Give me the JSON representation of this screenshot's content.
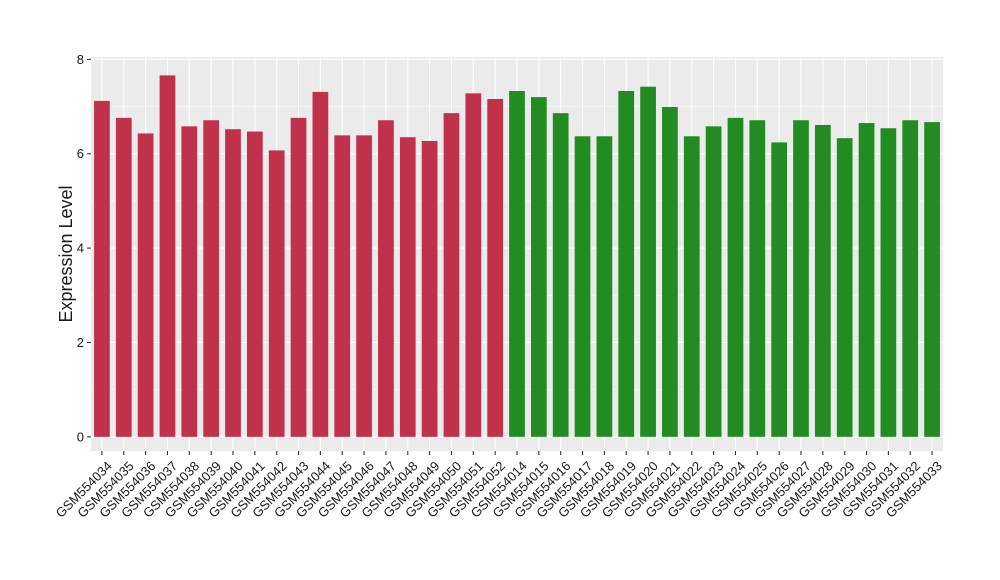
{
  "chart_data": {
    "type": "bar",
    "title": "",
    "xlabel": "",
    "ylabel": "Expression Level",
    "ylim": [
      -0.3,
      8.05
    ],
    "yticks": [
      0,
      2,
      4,
      6,
      8
    ],
    "grid": true,
    "colors": {
      "red": "#c0314b",
      "green": "#228b22",
      "panel": "#ebebeb",
      "grid": "#ffffff"
    },
    "categories": [
      "GSM554034",
      "GSM554035",
      "GSM554036",
      "GSM554037",
      "GSM554038",
      "GSM554039",
      "GSM554040",
      "GSM554041",
      "GSM554042",
      "GSM554043",
      "GSM554044",
      "GSM554045",
      "GSM554046",
      "GSM554047",
      "GSM554048",
      "GSM554049",
      "GSM554050",
      "GSM554051",
      "GSM554052",
      "GSM554014",
      "GSM554015",
      "GSM554016",
      "GSM554017",
      "GSM554018",
      "GSM554019",
      "GSM554020",
      "GSM554021",
      "GSM554022",
      "GSM554023",
      "GSM554024",
      "GSM554025",
      "GSM554026",
      "GSM554027",
      "GSM554028",
      "GSM554029",
      "GSM554030",
      "GSM554031",
      "GSM554032",
      "GSM554033"
    ],
    "values": [
      7.12,
      6.76,
      6.43,
      7.66,
      6.58,
      6.71,
      6.52,
      6.47,
      6.07,
      6.76,
      7.31,
      6.39,
      6.39,
      6.71,
      6.35,
      6.27,
      6.86,
      7.28,
      7.16,
      7.33,
      7.2,
      6.86,
      6.37,
      6.37,
      7.33,
      7.42,
      6.99,
      6.37,
      6.58,
      6.76,
      6.71,
      6.24,
      6.71,
      6.61,
      6.33,
      6.65,
      6.54,
      6.71,
      6.67
    ],
    "bar_colors": [
      "red",
      "red",
      "red",
      "red",
      "red",
      "red",
      "red",
      "red",
      "red",
      "red",
      "red",
      "red",
      "red",
      "red",
      "red",
      "red",
      "red",
      "red",
      "red",
      "green",
      "green",
      "green",
      "green",
      "green",
      "green",
      "green",
      "green",
      "green",
      "green",
      "green",
      "green",
      "green",
      "green",
      "green",
      "green",
      "green",
      "green",
      "green",
      "green"
    ]
  }
}
